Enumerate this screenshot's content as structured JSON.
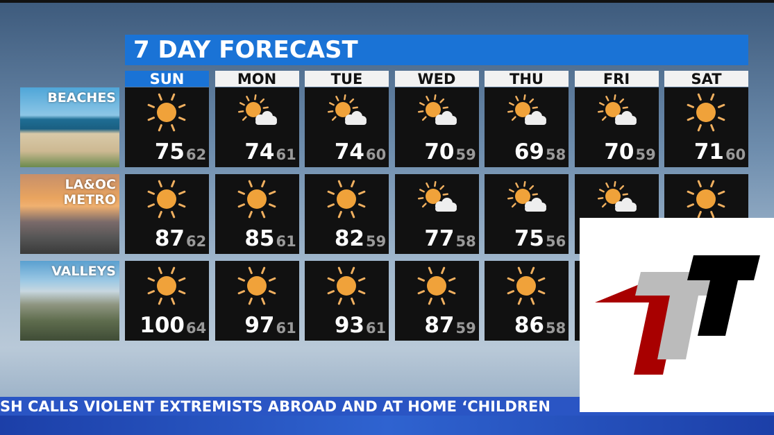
{
  "title": "7 DAY FORECAST",
  "days": [
    "SUN",
    "MON",
    "TUE",
    "WED",
    "THU",
    "FRI",
    "SAT"
  ],
  "highlight_day": "SUN",
  "colors": {
    "accent_blue": "#1a73d6",
    "sun": "#f0a23a",
    "ticker": "#2a55c4"
  },
  "regions": [
    {
      "label": "BEACHES",
      "cells": [
        {
          "icon": "sun-icon",
          "hi": "75",
          "lo": "62"
        },
        {
          "icon": "partly-cloudy-icon",
          "hi": "74",
          "lo": "61"
        },
        {
          "icon": "partly-cloudy-icon",
          "hi": "74",
          "lo": "60"
        },
        {
          "icon": "partly-cloudy-icon",
          "hi": "70",
          "lo": "59"
        },
        {
          "icon": "partly-cloudy-icon",
          "hi": "69",
          "lo": "58"
        },
        {
          "icon": "partly-cloudy-icon",
          "hi": "70",
          "lo": "59"
        },
        {
          "icon": "sun-icon",
          "hi": "71",
          "lo": "60"
        }
      ]
    },
    {
      "label": "LA&OC METRO",
      "label_lines": [
        "LA&OC",
        "METRO"
      ],
      "cells": [
        {
          "icon": "sun-icon",
          "hi": "87",
          "lo": "62"
        },
        {
          "icon": "sun-icon",
          "hi": "85",
          "lo": "61"
        },
        {
          "icon": "sun-icon",
          "hi": "82",
          "lo": "59"
        },
        {
          "icon": "partly-cloudy-icon",
          "hi": "77",
          "lo": "58"
        },
        {
          "icon": "partly-cloudy-icon",
          "hi": "75",
          "lo": "56"
        },
        {
          "icon": "partly-cloudy-icon"
        },
        {
          "icon": "sun-icon"
        }
      ]
    },
    {
      "label": "VALLEYS",
      "cells": [
        {
          "icon": "sun-icon",
          "hi": "100",
          "lo": "64"
        },
        {
          "icon": "sun-icon",
          "hi": "97",
          "lo": "61"
        },
        {
          "icon": "sun-icon",
          "hi": "93",
          "lo": "61"
        },
        {
          "icon": "sun-icon",
          "hi": "87",
          "lo": "59"
        },
        {
          "icon": "sun-icon",
          "hi": "86",
          "lo": "58"
        },
        {},
        {}
      ]
    }
  ],
  "ticker": "SH CALLS VIOLENT EXTREMISTS ABROAD AND AT HOME ‘CHILDREN",
  "logo": {
    "text": "TTT",
    "colors": [
      "#a80000",
      "#bbbbbb",
      "#000000"
    ]
  }
}
